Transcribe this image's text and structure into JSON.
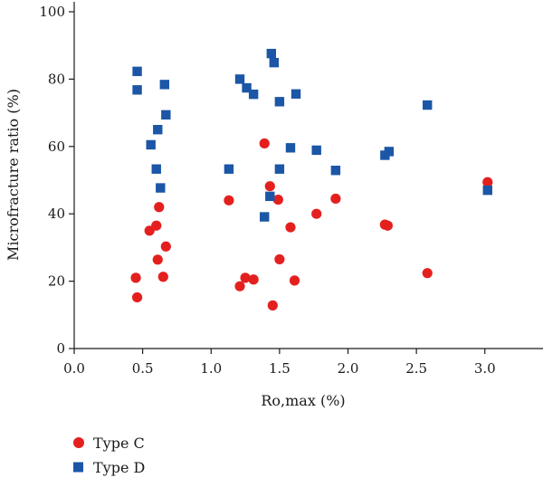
{
  "chart_data": {
    "type": "scatter",
    "title": "",
    "xlabel": "Ro,max (%)",
    "ylabel": "Microfracture ratio (%)",
    "xlim": [
      0,
      3.2
    ],
    "ylim": [
      0,
      100
    ],
    "x_ticks": [
      "0.0",
      "0.5",
      "1.0",
      "1.5",
      "2.0",
      "2.5",
      "3.0"
    ],
    "y_ticks": [
      "0",
      "20",
      "40",
      "60",
      "80",
      "100"
    ],
    "grid": false,
    "legend_position": "bottom-left",
    "series": [
      {
        "name": "Type C",
        "marker": "circle",
        "color": "#e4201f",
        "points": [
          [
            0.45,
            21
          ],
          [
            0.46,
            15.2
          ],
          [
            0.55,
            35
          ],
          [
            0.6,
            36.5
          ],
          [
            0.61,
            26.4
          ],
          [
            0.62,
            42
          ],
          [
            0.65,
            21.3
          ],
          [
            0.67,
            30.3
          ],
          [
            1.13,
            44
          ],
          [
            1.21,
            18.5
          ],
          [
            1.25,
            21
          ],
          [
            1.31,
            20.5
          ],
          [
            1.39,
            60.9
          ],
          [
            1.43,
            48.2
          ],
          [
            1.45,
            12.8
          ],
          [
            1.49,
            44.2
          ],
          [
            1.5,
            26.5
          ],
          [
            1.58,
            36
          ],
          [
            1.61,
            20.2
          ],
          [
            1.77,
            40
          ],
          [
            1.91,
            44.5
          ],
          [
            2.27,
            36.8
          ],
          [
            2.29,
            36.5
          ],
          [
            2.58,
            22.4
          ],
          [
            3.02,
            49.4
          ]
        ]
      },
      {
        "name": "Type D",
        "marker": "square",
        "color": "#1b56a7",
        "points": [
          [
            0.46,
            82.3
          ],
          [
            0.46,
            76.8
          ],
          [
            0.56,
            60.5
          ],
          [
            0.6,
            53.3
          ],
          [
            0.61,
            65
          ],
          [
            0.63,
            47.7
          ],
          [
            0.66,
            78.4
          ],
          [
            0.67,
            69.4
          ],
          [
            1.13,
            53.3
          ],
          [
            1.21,
            80
          ],
          [
            1.26,
            77.4
          ],
          [
            1.31,
            75.5
          ],
          [
            1.39,
            39.1
          ],
          [
            1.43,
            45.2
          ],
          [
            1.44,
            87.6
          ],
          [
            1.46,
            84.9
          ],
          [
            1.5,
            53.3
          ],
          [
            1.5,
            73.3
          ],
          [
            1.58,
            59.6
          ],
          [
            1.62,
            75.6
          ],
          [
            1.77,
            58.9
          ],
          [
            1.91,
            52.9
          ],
          [
            2.27,
            57.4
          ],
          [
            2.3,
            58.5
          ],
          [
            2.58,
            72.3
          ],
          [
            3.02,
            47
          ]
        ]
      }
    ]
  }
}
